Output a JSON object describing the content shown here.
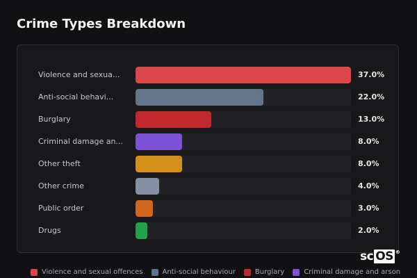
{
  "title": "Crime Types Breakdown",
  "chart_data": {
    "type": "bar",
    "orientation": "horizontal",
    "title": "Crime Types Breakdown",
    "xlim": [
      0,
      37
    ],
    "categories": [
      "Violence and sexual offences",
      "Anti-social behaviour",
      "Burglary",
      "Criminal damage and arson",
      "Other theft",
      "Other crime",
      "Public order",
      "Drugs"
    ],
    "display_labels": [
      "Violence and sexua...",
      "Anti-social behavi...",
      "Burglary",
      "Criminal damage an...",
      "Other theft",
      "Other crime",
      "Public order",
      "Drugs"
    ],
    "values": [
      37.0,
      22.0,
      13.0,
      8.0,
      8.0,
      4.0,
      3.0,
      2.0
    ],
    "value_labels": [
      "37.0%",
      "22.0%",
      "13.0%",
      "8.0%",
      "8.0%",
      "4.0%",
      "3.0%",
      "2.0%"
    ],
    "colors": [
      "#d9474b",
      "#64748b",
      "#c0282d",
      "#7b52d6",
      "#d48f1a",
      "#8590a2",
      "#d2661f",
      "#22a04b"
    ],
    "legend_position": "bottom",
    "legend": [
      "Violence and sexual offences",
      "Anti-social behaviour",
      "Burglary",
      "Criminal damage and arson"
    ]
  },
  "watermark": {
    "prefix": "sc",
    "boxed": "OS",
    "mark": "®"
  }
}
